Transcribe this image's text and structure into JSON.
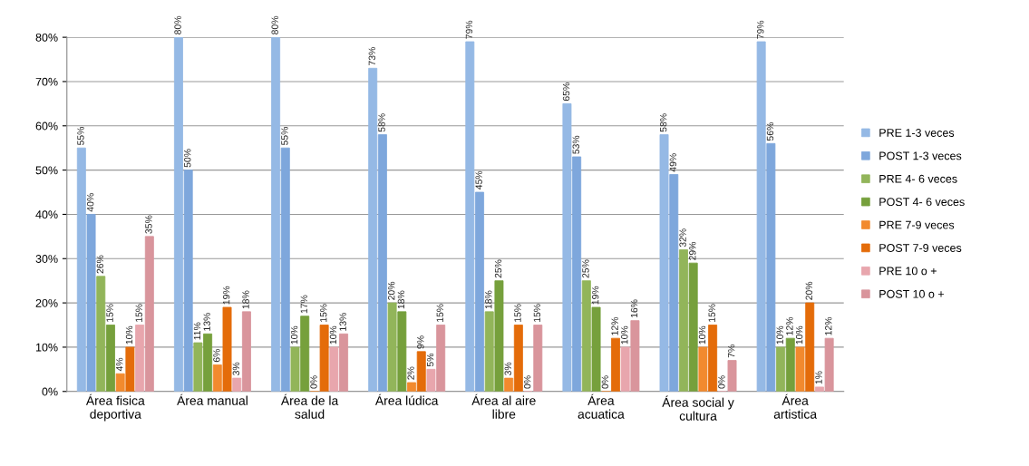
{
  "chart_data": {
    "type": "bar",
    "categories": [
      "Área fisica\ndeportiva",
      "Área manual",
      "Área de la\nsalud",
      "Área lúdica",
      "Área al aire\nlibre",
      "Área\nacuatica",
      "Área social y\ncultura",
      "Área\nartistica"
    ],
    "series": [
      {
        "name": "PRE 1-3 veces",
        "color": "#95b9e5",
        "values": [
          55,
          80,
          80,
          73,
          79,
          65,
          58,
          79
        ],
        "value_labels": [
          "55%",
          "80%",
          "80%",
          "73%",
          "79%",
          "65%",
          "58%",
          "79%"
        ]
      },
      {
        "name": "POST 1-3 veces",
        "color": "#7ea7dc",
        "values": [
          40,
          50,
          55,
          58,
          45,
          53,
          49,
          56
        ],
        "value_labels": [
          "40%",
          "50%",
          "55%",
          "58%",
          "45%",
          "53%",
          "49%",
          "56%"
        ]
      },
      {
        "name": "PRE 4- 6 veces",
        "color": "#92b55a",
        "values": [
          26,
          11,
          10,
          20,
          18,
          25,
          32,
          10
        ],
        "value_labels": [
          "26%",
          "11%",
          "10%",
          "20%",
          "18%",
          "25%",
          "32%",
          "10%"
        ]
      },
      {
        "name": "POST 4- 6 veces",
        "color": "#76a03c",
        "values": [
          15,
          13,
          17,
          18,
          25,
          19,
          29,
          12
        ],
        "value_labels": [
          "15%",
          "13%",
          "17%",
          "18%",
          "25%",
          "19%",
          "29%",
          "12%"
        ]
      },
      {
        "name": "PRE 7-9 veces",
        "color": "#f28a2e",
        "values": [
          4,
          6,
          0,
          2,
          3,
          0,
          10,
          10
        ],
        "value_labels": [
          "4%",
          "6%",
          "0%",
          "2%",
          "3%",
          "0%",
          "10%",
          "10%"
        ]
      },
      {
        "name": "POST 7-9 veces",
        "color": "#e46c0a",
        "values": [
          10,
          19,
          15,
          9,
          15,
          12,
          15,
          20
        ],
        "value_labels": [
          "10%",
          "19%",
          "15%",
          "9%",
          "15%",
          "12%",
          "15%",
          "20%"
        ]
      },
      {
        "name": "PRE 10 o +",
        "color": "#e8a6ad",
        "values": [
          15,
          3,
          10,
          5,
          0,
          10,
          0,
          1
        ],
        "value_labels": [
          "15%",
          "3%",
          "10%",
          "5%",
          "0%",
          "10%",
          "0%",
          "1%"
        ]
      },
      {
        "name": "POST 10 o +",
        "color": "#d9959c",
        "values": [
          35,
          18,
          13,
          15,
          15,
          16,
          7,
          12
        ],
        "value_labels": [
          "35%",
          "18%",
          "13%",
          "15%",
          "15%",
          "16%",
          "7%",
          "12%"
        ]
      }
    ],
    "ylim": [
      0,
      80
    ],
    "yticks": [
      {
        "value": 0,
        "label": "0%"
      },
      {
        "value": 10,
        "label": "10%"
      },
      {
        "value": 20,
        "label": "20%"
      },
      {
        "value": 30,
        "label": "30%"
      },
      {
        "value": 40,
        "label": "40%"
      },
      {
        "value": 50,
        "label": "50%"
      },
      {
        "value": 60,
        "label": "60%"
      },
      {
        "value": 70,
        "label": "70%"
      },
      {
        "value": 80,
        "label": "80%"
      }
    ],
    "grid": "y",
    "legend": "right"
  }
}
